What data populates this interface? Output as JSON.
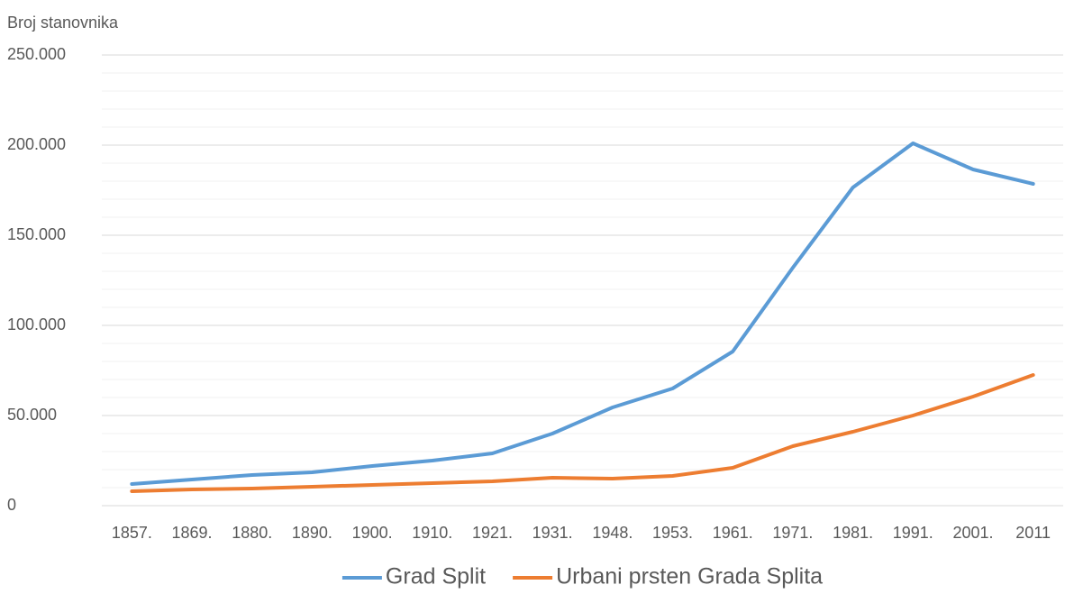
{
  "chart_data": {
    "type": "line",
    "y_axis_label": "Broj stanovnika",
    "categories": [
      "1857.",
      "1869.",
      "1880.",
      "1890.",
      "1900.",
      "1910.",
      "1921.",
      "1931.",
      "1948.",
      "1953.",
      "1961.",
      "1971.",
      "1981.",
      "1991.",
      "2001.",
      "2011"
    ],
    "series": [
      {
        "name": "Grad Split",
        "color": "#5b9bd5",
        "values": [
          12000,
          14500,
          17000,
          18500,
          22000,
          25000,
          29000,
          40000,
          54500,
          65000,
          85500,
          132000,
          176500,
          201000,
          186500,
          178500
        ]
      },
      {
        "name": "Urbani prsten Grada Splita",
        "color": "#ed7d31",
        "values": [
          8000,
          9000,
          9500,
          10500,
          11500,
          12500,
          13500,
          15500,
          15000,
          16500,
          21000,
          33000,
          41000,
          50000,
          60500,
          72500
        ]
      }
    ],
    "ylim": [
      0,
      250000
    ],
    "yticks": [
      0,
      {
        "value": 50000,
        "label": "50.000"
      },
      {
        "value": 100000,
        "label": "100.000"
      },
      {
        "value": 150000,
        "label": "150.000"
      },
      {
        "value": 200000,
        "label": "200.000"
      },
      {
        "value": 250000,
        "label": "250.000"
      }
    ],
    "yminor_ticks": [
      10000,
      20000,
      30000,
      40000,
      60000,
      70000,
      80000,
      90000,
      110000,
      120000,
      130000,
      140000,
      160000,
      170000,
      180000,
      190000,
      210000,
      220000,
      230000,
      240000
    ],
    "grid": true,
    "legend": "bottom"
  }
}
